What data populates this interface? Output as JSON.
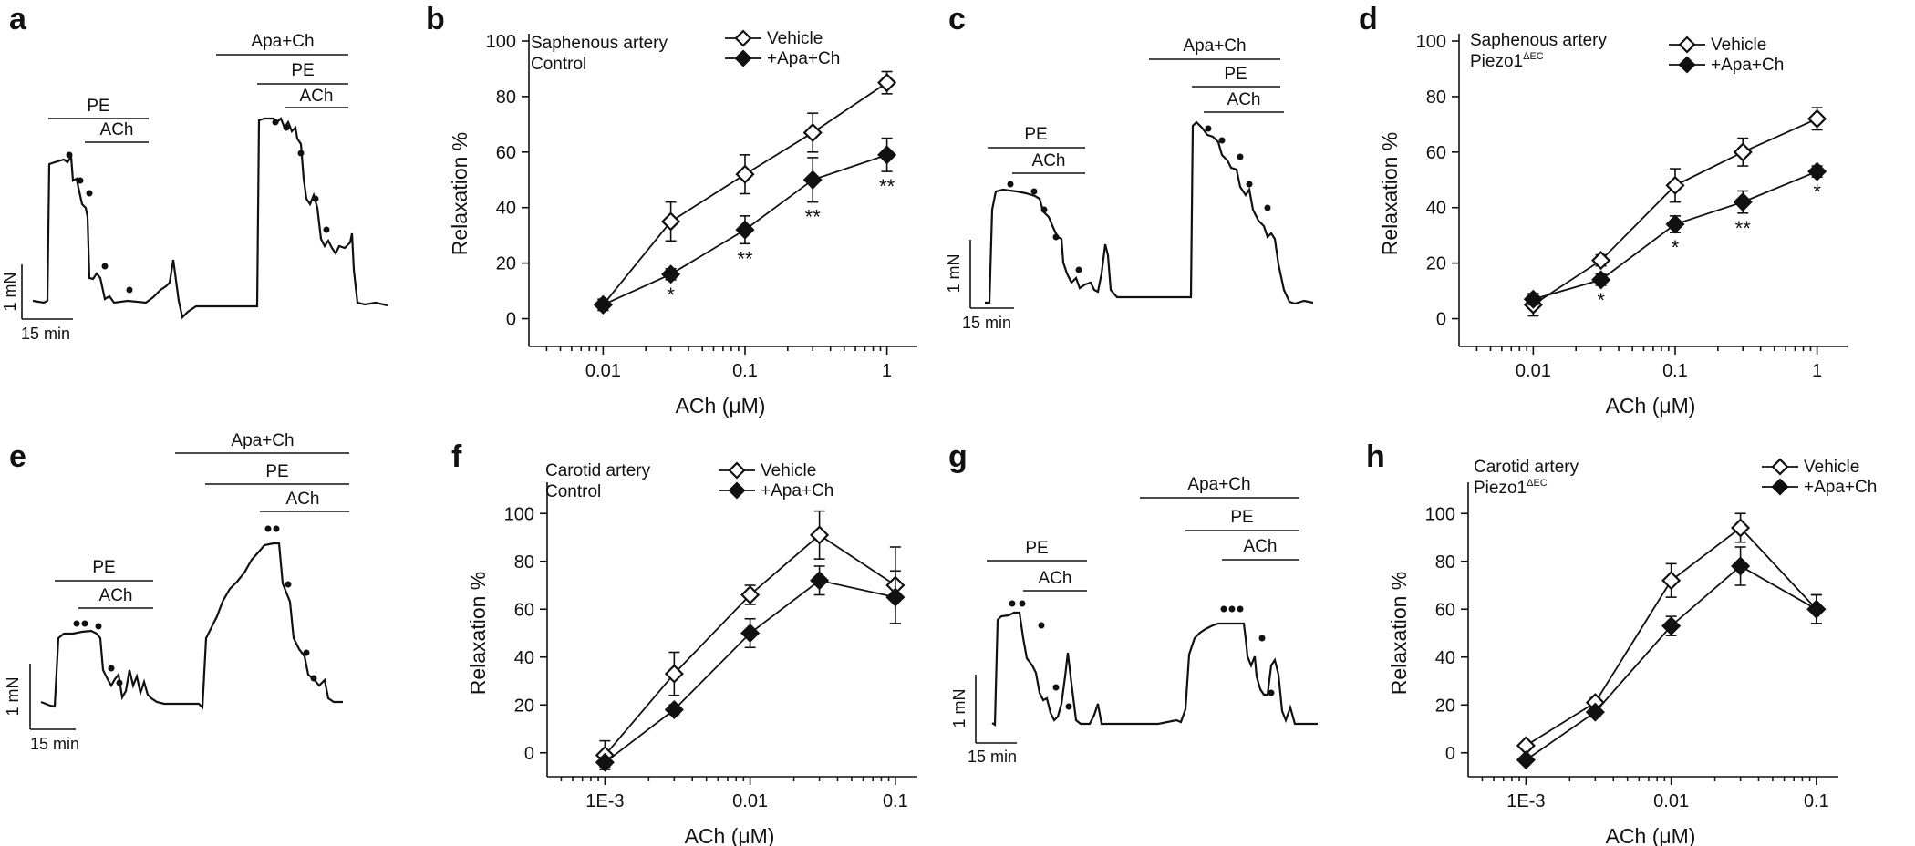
{
  "panels": {
    "a": {
      "label": "a",
      "outer_bar": "Apa+Ch",
      "bar1": "PE",
      "bar2": "ACh",
      "bar3": "PE",
      "bar4": "ACh",
      "scale_y": "1 mN",
      "scale_x": "15 min"
    },
    "c": {
      "label": "c",
      "outer_bar": "Apa+Ch",
      "bar1": "PE",
      "bar2": "ACh",
      "bar3": "PE",
      "bar4": "ACh",
      "scale_y": "1 mN",
      "scale_x": "15 min"
    },
    "e": {
      "label": "e",
      "outer_bar": "Apa+Ch",
      "bar1": "PE",
      "bar2": "ACh",
      "bar3": "PE",
      "bar4": "ACh",
      "scale_y": "1 mN",
      "scale_x": "15 min"
    },
    "g": {
      "label": "g",
      "outer_bar": "Apa+Ch",
      "bar1": "PE",
      "bar2": "ACh",
      "bar3": "PE",
      "bar4": "ACh",
      "scale_y": "1 mN",
      "scale_x": "15 min"
    }
  },
  "chart_data": [
    {
      "panel": "b",
      "type": "line",
      "xscale": "log",
      "title": "Saphenous artery",
      "subtitle": "Control",
      "subtitle_sup": "",
      "xlabel": "ACh (μM)",
      "ylabel": "Relaxation %",
      "xlim": [
        0.003,
        1.5
      ],
      "ylim": [
        -10,
        100
      ],
      "xticks": [
        0.01,
        0.1,
        1
      ],
      "xtick_labels": [
        "0.01",
        "0.1",
        "1"
      ],
      "yticks": [
        0,
        20,
        40,
        60,
        80,
        100
      ],
      "ytick_labels": [
        "0",
        "20",
        "40",
        "60",
        "80",
        "100"
      ],
      "x": [
        0.01,
        0.03,
        0.1,
        0.3,
        1
      ],
      "series": [
        {
          "name": "Vehicle",
          "marker": "open-diamond",
          "values": [
            5,
            35,
            52,
            67,
            85
          ],
          "errors": [
            2,
            7,
            7,
            7,
            4
          ]
        },
        {
          "name": "+Apa+Ch",
          "marker": "filled-diamond",
          "values": [
            5,
            16,
            32,
            50,
            59
          ],
          "errors": [
            2,
            2,
            5,
            8,
            6
          ]
        }
      ],
      "significance": [
        "",
        "*",
        "**",
        "**",
        "**"
      ]
    },
    {
      "panel": "d",
      "type": "line",
      "xscale": "log",
      "title": "Saphenous artery",
      "subtitle": "Piezo1",
      "subtitle_sup": "ΔEC",
      "xlabel": "ACh (μM)",
      "ylabel": "Relaxation %",
      "xlim": [
        0.003,
        1.5
      ],
      "ylim": [
        -10,
        100
      ],
      "xticks": [
        0.01,
        0.1,
        1
      ],
      "xtick_labels": [
        "0.01",
        "0.1",
        "1"
      ],
      "yticks": [
        0,
        20,
        40,
        60,
        80,
        100
      ],
      "ytick_labels": [
        "0",
        "20",
        "40",
        "60",
        "80",
        "100"
      ],
      "x": [
        0.01,
        0.03,
        0.1,
        0.3,
        1
      ],
      "series": [
        {
          "name": "Vehicle",
          "marker": "open-diamond",
          "values": [
            5,
            21,
            48,
            60,
            72
          ],
          "errors": [
            4,
            2,
            6,
            5,
            4
          ]
        },
        {
          "name": "+Apa+Ch",
          "marker": "filled-diamond",
          "values": [
            7,
            14,
            34,
            42,
            53
          ],
          "errors": [
            2,
            2,
            3,
            4,
            2
          ]
        }
      ],
      "significance": [
        "",
        "*",
        "*",
        "**",
        "*"
      ]
    },
    {
      "panel": "f",
      "type": "line",
      "xscale": "log",
      "title": "Carotid artery",
      "subtitle": "Control",
      "subtitle_sup": "",
      "xlabel": "ACh (μM)",
      "ylabel": "Relaxation %",
      "xlim": [
        0.0004,
        0.13
      ],
      "ylim": [
        -10,
        110
      ],
      "xticks": [
        0.001,
        0.01,
        0.1
      ],
      "xtick_labels": [
        "1E-3",
        "0.01",
        "0.1"
      ],
      "yticks": [
        0,
        20,
        40,
        60,
        80,
        100
      ],
      "ytick_labels": [
        "0",
        "20",
        "40",
        "60",
        "80",
        "100"
      ],
      "x": [
        0.001,
        0.003,
        0.01,
        0.03,
        0.1
      ],
      "series": [
        {
          "name": "Vehicle",
          "marker": "open-diamond",
          "values": [
            -1,
            33,
            66,
            91,
            70
          ],
          "errors": [
            6,
            9,
            4,
            10,
            16
          ]
        },
        {
          "name": "+Apa+Ch",
          "marker": "filled-diamond",
          "values": [
            -4,
            18,
            50,
            72,
            65
          ],
          "errors": [
            2,
            2,
            6,
            6,
            11
          ]
        }
      ],
      "significance": [
        "",
        "",
        "",
        "",
        ""
      ]
    },
    {
      "panel": "h",
      "type": "line",
      "xscale": "log",
      "title": "Carotid artery",
      "subtitle": "Piezo1",
      "subtitle_sup": "ΔEC",
      "xlabel": "ACh (μM)",
      "ylabel": "Relaxation %",
      "xlim": [
        0.0004,
        0.13
      ],
      "ylim": [
        -10,
        110
      ],
      "xticks": [
        0.001,
        0.01,
        0.1
      ],
      "xtick_labels": [
        "1E-3",
        "0.01",
        "0.1"
      ],
      "yticks": [
        0,
        20,
        40,
        60,
        80,
        100
      ],
      "ytick_labels": [
        "0",
        "20",
        "40",
        "60",
        "80",
        "100"
      ],
      "x": [
        0.001,
        0.003,
        0.01,
        0.03,
        0.1
      ],
      "series": [
        {
          "name": "Vehicle",
          "marker": "open-diamond",
          "values": [
            3,
            21,
            72,
            94,
            60
          ],
          "errors": [
            1,
            2,
            7,
            6,
            6
          ]
        },
        {
          "name": "+Apa+Ch",
          "marker": "filled-diamond",
          "values": [
            -3,
            17,
            53,
            78,
            60
          ],
          "errors": [
            1,
            2,
            4,
            8,
            6
          ]
        }
      ],
      "significance": [
        "",
        "",
        "",
        "",
        ""
      ]
    }
  ]
}
